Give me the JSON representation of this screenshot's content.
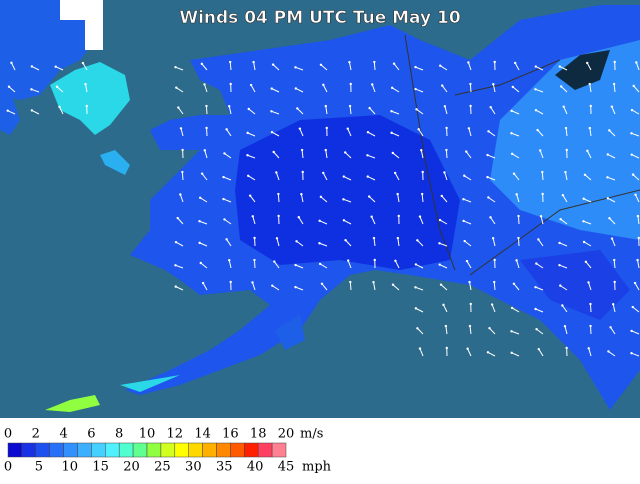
{
  "title": "Winds 04 PM UTC Tue May 10",
  "legend": {
    "colors": [
      "#0a0ad0",
      "#1a32e6",
      "#1e50f0",
      "#2870f8",
      "#3290ff",
      "#3cb0ff",
      "#46d0ff",
      "#50f0ff",
      "#50ffd0",
      "#60ff90",
      "#90ff40",
      "#d0ff20",
      "#ffff00",
      "#ffd800",
      "#ffb000",
      "#ff8800",
      "#ff5a00",
      "#ff2000",
      "#ff4060",
      "#ff8090"
    ],
    "ms_ticks": [
      0,
      2,
      4,
      6,
      8,
      10,
      12,
      14,
      16,
      18,
      20
    ],
    "ms_unit": "m/s",
    "mph_ticks": [
      0,
      5,
      10,
      15,
      20,
      25,
      30,
      35,
      40,
      45
    ],
    "mph_unit": "mph"
  }
}
